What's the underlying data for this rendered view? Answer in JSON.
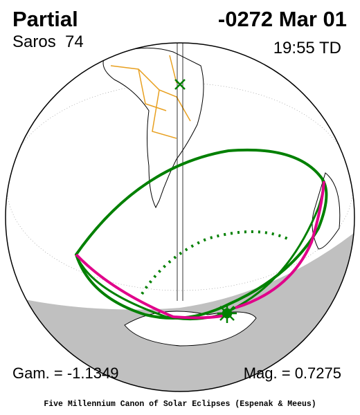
{
  "header": {
    "type": "Partial",
    "saros": "Saros  74",
    "date": "-0272 Mar 01",
    "time": "19:55 TD"
  },
  "footer": {
    "gamma": "Gam. = -1.1349",
    "magnitude": "Mag. = 0.7275",
    "credit": "Five Millennium Canon of Solar Eclipses (Espenak & Meeus)"
  }
}
